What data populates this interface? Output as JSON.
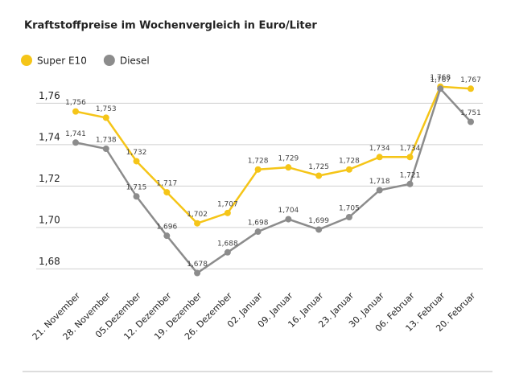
{
  "chart_data": {
    "type": "line",
    "title": "Kraftstoffpreise im Wochenvergleich in Euro/Liter",
    "categories": [
      "21. November",
      "28. November",
      "05.Dezember",
      "12. Dezember",
      "19. Dezember",
      "26. Dezember",
      "02. Januar",
      "09. Januar",
      "16. Januar",
      "23. Januar",
      "30. Januar",
      "06. Februar",
      "13. Februar",
      "20. Februar"
    ],
    "series": [
      {
        "name": "Super E10",
        "color": "#f5c518",
        "values": [
          1.756,
          1.753,
          1.732,
          1.717,
          1.702,
          1.707,
          1.728,
          1.729,
          1.725,
          1.728,
          1.734,
          1.734,
          1.768,
          1.767
        ],
        "value_labels": [
          "1,756",
          "1,753",
          "1,732",
          "1,717",
          "1,702",
          "1,707",
          "1,728",
          "1,729",
          "1,725",
          "1,728",
          "1,734",
          "1,734",
          "1,768",
          "1,767"
        ]
      },
      {
        "name": "Diesel",
        "color": "#8c8c8c",
        "values": [
          1.741,
          1.738,
          1.715,
          1.696,
          1.678,
          1.688,
          1.698,
          1.704,
          1.699,
          1.705,
          1.718,
          1.721,
          1.767,
          1.751
        ],
        "value_labels": [
          "1,741",
          "1,738",
          "1,715",
          "1,696",
          "1,678",
          "1,688",
          "1,698",
          "1,704",
          "1,699",
          "1,705",
          "1,718",
          "1,721",
          "1,767",
          "1,751"
        ]
      }
    ],
    "ylim": [
      1.672,
      1.771
    ],
    "yticks": [
      {
        "value": 1.68,
        "label": "1,68"
      },
      {
        "value": 1.7,
        "label": "1,70"
      },
      {
        "value": 1.72,
        "label": "1,72"
      },
      {
        "value": 1.74,
        "label": "1,74"
      },
      {
        "value": 1.76,
        "label": "1,76"
      }
    ],
    "grid": true,
    "legend": "top-left"
  }
}
